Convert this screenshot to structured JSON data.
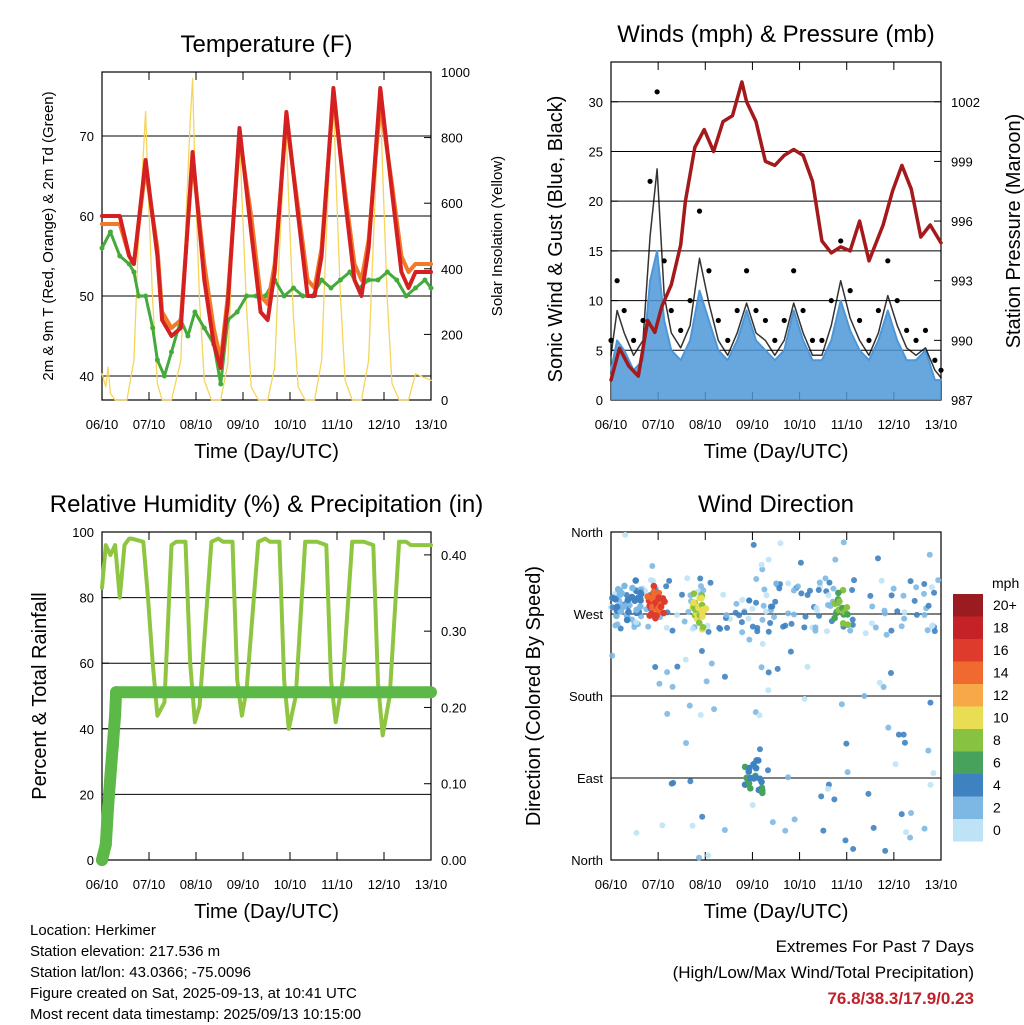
{
  "panels": {
    "temperature": {
      "title": "Temperature (F)",
      "ylabel_left": "2m & 9m T (Red, Orange) & 2m Td (Green)",
      "ylabel_right": "Solar Insolation (Yellow)",
      "xlabel": "Time (Day/UTC)"
    },
    "winds": {
      "title": "Winds (mph) & Pressure (mb)",
      "ylabel_left": "Sonic Wind & Gust (Blue, Black)",
      "ylabel_right": "Station Pressure (Maroon)",
      "xlabel": "Time (Day/UTC)"
    },
    "humidity": {
      "title": "Relative Humidity (%) & Precipitation (in)",
      "ylabel_left": "Percent & Total Rainfall",
      "xlabel": "Time (Day/UTC)"
    },
    "direction": {
      "title": "Wind Direction",
      "ylabel_left": "Direction (Colored By Speed)",
      "xlabel": "Time (Day/UTC)",
      "legend_title": "mph"
    }
  },
  "colors": {
    "temp2m": "#d42020",
    "temp9m": "#f07a28",
    "dewpoint": "#44aa3c",
    "solar": "#f5d55a",
    "wind": "#4d97d8",
    "gust": "#000000",
    "pressure": "#a3191c",
    "rh": "#8ec641",
    "precip": "#5cb847"
  },
  "chart_data": [
    {
      "type": "line",
      "id": "temperature",
      "xticks": [
        "06/10",
        "07/10",
        "08/10",
        "09/10",
        "10/10",
        "11/10",
        "12/10",
        "13/10"
      ],
      "xlim_days": [
        6.42,
        13.43
      ],
      "ylim": [
        37,
        78
      ],
      "yticks": [
        "40",
        "50",
        "60",
        "70"
      ],
      "y2lim": [
        0,
        1000
      ],
      "y2ticks": [
        "0",
        "200",
        "400",
        "600",
        "800",
        "1000"
      ],
      "series": [
        {
          "x_days": [
            6.42,
            6.8,
            7.0,
            7.1,
            7.35,
            7.6,
            7.7,
            7.9,
            8.1,
            8.35,
            8.6,
            8.8,
            8.95,
            9.1,
            9.35,
            9.6,
            9.8,
            9.95,
            10.1,
            10.35,
            10.6,
            10.8,
            10.95,
            11.1,
            11.35,
            11.6,
            11.8,
            11.95,
            12.1,
            12.35,
            12.6,
            12.8,
            12.95,
            13.1,
            13.3,
            13.43
          ],
          "y": [
            60,
            60,
            55,
            54,
            67,
            55,
            47,
            45,
            46,
            68,
            52,
            44,
            41,
            49,
            71,
            58,
            48,
            47,
            53,
            73,
            60,
            50,
            50,
            55,
            76,
            62,
            52,
            50,
            56,
            76,
            63,
            53,
            51,
            53,
            53,
            53
          ]
        },
        {
          "x_days": [
            6.42,
            6.8,
            7.0,
            7.1,
            7.35,
            7.6,
            7.7,
            7.9,
            8.1,
            8.35,
            8.6,
            8.8,
            8.95,
            9.1,
            9.35,
            9.6,
            9.8,
            9.95,
            10.1,
            10.35,
            10.6,
            10.8,
            10.95,
            11.1,
            11.35,
            11.6,
            11.8,
            11.95,
            12.1,
            12.35,
            12.6,
            12.8,
            12.95,
            13.1,
            13.3,
            13.43
          ],
          "y": [
            59,
            59,
            55,
            54,
            66,
            56,
            48,
            46,
            47,
            67,
            54,
            46,
            42,
            50,
            70,
            60,
            50,
            49,
            54,
            72,
            61,
            52,
            51,
            56,
            75,
            63,
            54,
            52,
            57,
            74,
            64,
            55,
            53,
            54,
            54,
            54
          ]
        },
        {
          "x_days": [
            6.42,
            6.6,
            6.8,
            7.0,
            7.1,
            7.2,
            7.35,
            7.5,
            7.6,
            7.75,
            7.9,
            8.1,
            8.25,
            8.4,
            8.6,
            8.8,
            8.95,
            9.1,
            9.3,
            9.5,
            9.7,
            9.9,
            10.1,
            10.3,
            10.5,
            10.7,
            10.9,
            11.1,
            11.3,
            11.5,
            11.7,
            11.9,
            12.1,
            12.3,
            12.5,
            12.7,
            12.9,
            13.1,
            13.3,
            13.43
          ],
          "y": [
            56,
            58,
            55,
            54,
            53,
            50,
            50,
            46,
            42,
            40,
            43,
            47,
            45,
            48,
            46,
            44,
            39,
            47,
            48,
            50,
            50,
            50,
            52,
            50,
            51,
            50,
            50,
            52,
            51,
            52,
            53,
            51,
            52,
            52,
            53,
            52,
            50,
            51,
            52,
            51
          ]
        },
        {
          "x_days": [
            6.42,
            6.5,
            6.55,
            6.6,
            6.7,
            6.8,
            6.95,
            7.1,
            7.2,
            7.3,
            7.35,
            7.4,
            7.5,
            7.6,
            7.7,
            7.9,
            8.1,
            8.2,
            8.3,
            8.35,
            8.4,
            8.5,
            8.6,
            8.75,
            8.95,
            9.1,
            9.2,
            9.3,
            9.35,
            9.4,
            9.5,
            9.6,
            9.75,
            9.95,
            10.1,
            10.2,
            10.3,
            10.35,
            10.4,
            10.5,
            10.6,
            10.75,
            10.95,
            11.1,
            11.2,
            11.3,
            11.35,
            11.4,
            11.5,
            11.6,
            11.75,
            11.95,
            12.1,
            12.2,
            12.3,
            12.35,
            12.4,
            12.5,
            12.6,
            12.75,
            12.95,
            13.1,
            13.43
          ],
          "y": [
            80,
            40,
            100,
            20,
            0,
            0,
            0,
            120,
            500,
            750,
            880,
            650,
            300,
            50,
            0,
            0,
            120,
            520,
            850,
            980,
            700,
            300,
            60,
            0,
            0,
            110,
            480,
            760,
            820,
            620,
            280,
            40,
            0,
            0,
            100,
            450,
            740,
            800,
            600,
            250,
            40,
            0,
            0,
            120,
            500,
            830,
            930,
            700,
            320,
            60,
            0,
            0,
            120,
            480,
            820,
            920,
            690,
            300,
            50,
            0,
            0,
            80,
            60
          ]
        }
      ]
    },
    {
      "type": "line",
      "id": "winds",
      "xticks": [
        "06/10",
        "07/10",
        "08/10",
        "09/10",
        "10/10",
        "11/10",
        "12/10",
        "13/10"
      ],
      "xlim_days": [
        6.42,
        13.43
      ],
      "ylim": [
        0,
        34
      ],
      "yticks": [
        "0",
        "5",
        "10",
        "15",
        "20",
        "25",
        "30"
      ],
      "y2lim": [
        987,
        1004
      ],
      "y2ticks": [
        "987",
        "990",
        "993",
        "996",
        "999",
        "1002"
      ],
      "series": [
        {
          "x_days": [
            6.42,
            6.55,
            6.7,
            6.9,
            7.1,
            7.25,
            7.4,
            7.55,
            7.7,
            7.9,
            8.1,
            8.3,
            8.5,
            8.7,
            8.9,
            9.1,
            9.3,
            9.5,
            9.7,
            9.9,
            10.1,
            10.3,
            10.5,
            10.7,
            10.9,
            11.1,
            11.3,
            11.5,
            11.7,
            11.9,
            12.1,
            12.3,
            12.5,
            12.7,
            12.9,
            13.1,
            13.3,
            13.43
          ],
          "y": [
            3,
            6,
            5,
            3,
            4,
            12,
            15,
            8,
            5,
            4,
            6,
            11,
            8,
            5,
            4,
            6,
            9,
            6,
            5,
            4,
            5,
            9,
            6,
            4,
            4,
            6,
            10,
            7,
            5,
            4,
            6,
            9,
            6,
            4,
            4,
            5,
            2,
            2
          ]
        },
        {
          "x_days": [
            6.42,
            6.55,
            6.7,
            6.9,
            7.1,
            7.25,
            7.4,
            7.55,
            7.7,
            7.9,
            8.1,
            8.3,
            8.5,
            8.7,
            8.9,
            9.1,
            9.3,
            9.5,
            9.7,
            9.9,
            10.1,
            10.3,
            10.5,
            10.7,
            10.9,
            11.1,
            11.3,
            11.5,
            11.7,
            11.9,
            12.1,
            12.3,
            12.5,
            12.7,
            12.9,
            13.1,
            13.3,
            13.43
          ],
          "y": [
            6,
            12,
            9,
            6,
            8,
            22,
            31,
            14,
            9,
            7,
            10,
            19,
            13,
            8,
            6,
            9,
            13,
            9,
            8,
            6,
            8,
            13,
            9,
            6,
            6,
            10,
            16,
            11,
            8,
            6,
            9,
            14,
            10,
            7,
            6,
            7,
            4,
            3
          ]
        },
        {
          "x_days": [
            6.42,
            6.6,
            6.8,
            7.0,
            7.2,
            7.35,
            7.5,
            7.7,
            7.9,
            8.0,
            8.2,
            8.4,
            8.6,
            8.8,
            9.0,
            9.2,
            9.3,
            9.5,
            9.7,
            9.9,
            10.1,
            10.3,
            10.5,
            10.7,
            10.9,
            11.1,
            11.3,
            11.5,
            11.7,
            11.9,
            12.1,
            12.2,
            12.4,
            12.6,
            12.8,
            13.0,
            13.2,
            13.43
          ],
          "y": [
            988.0,
            989.6,
            988.7,
            988.2,
            991.0,
            990.4,
            991.7,
            992.8,
            994.8,
            997.0,
            999.7,
            1000.6,
            999.5,
            1001.0,
            1001.3,
            1003.0,
            1002.0,
            1001.0,
            999.0,
            998.8,
            999.3,
            999.6,
            999.3,
            998.0,
            995.0,
            994.4,
            994.7,
            994.5,
            996.0,
            994.0,
            995.2,
            995.8,
            997.5,
            998.8,
            997.6,
            995.2,
            995.8,
            994.9
          ]
        }
      ]
    },
    {
      "type": "line",
      "id": "humidity",
      "xticks": [
        "06/10",
        "07/10",
        "08/10",
        "09/10",
        "10/10",
        "11/10",
        "12/10",
        "13/10"
      ],
      "xlim_days": [
        6.42,
        13.43
      ],
      "ylim": [
        0,
        100
      ],
      "yticks": [
        "0",
        "20",
        "40",
        "60",
        "80",
        "100"
      ],
      "y2lim": [
        0,
        0.43
      ],
      "y2ticks": [
        "0.00",
        "0.10",
        "0.20",
        "0.30",
        "0.40"
      ],
      "series": [
        {
          "x_days": [
            6.42,
            6.5,
            6.6,
            6.7,
            6.8,
            6.9,
            7.0,
            7.05,
            7.3,
            7.4,
            7.5,
            7.6,
            7.75,
            7.9,
            8.0,
            8.2,
            8.3,
            8.4,
            8.5,
            8.75,
            8.9,
            9.0,
            9.2,
            9.3,
            9.4,
            9.5,
            9.75,
            9.9,
            10.0,
            10.2,
            10.3,
            10.4,
            10.55,
            10.75,
            10.9,
            11.0,
            11.2,
            11.3,
            11.4,
            11.55,
            11.75,
            11.9,
            12.0,
            12.2,
            12.3,
            12.4,
            12.55,
            12.75,
            12.9,
            13.0,
            13.43
          ],
          "y": [
            83,
            96,
            93,
            96,
            80,
            96,
            98,
            98,
            97,
            80,
            60,
            44,
            48,
            96,
            97,
            97,
            60,
            42,
            47,
            97,
            98,
            97,
            97,
            55,
            44,
            52,
            97,
            98,
            97,
            97,
            55,
            40,
            50,
            97,
            97,
            97,
            96,
            55,
            42,
            55,
            97,
            97,
            97,
            96,
            54,
            38,
            50,
            97,
            97,
            96,
            96
          ]
        },
        {
          "x_days": [
            6.42,
            6.5,
            6.55,
            6.6,
            6.65,
            6.7,
            6.72,
            13.43
          ],
          "y": [
            0,
            0.02,
            0.07,
            0.11,
            0.15,
            0.19,
            0.22,
            0.22
          ]
        }
      ]
    },
    {
      "type": "scatter",
      "id": "direction",
      "xticks": [
        "06/10",
        "07/10",
        "08/10",
        "09/10",
        "10/10",
        "11/10",
        "12/10",
        "13/10"
      ],
      "xlim_days": [
        6.42,
        13.43
      ],
      "ylim": [
        0,
        360
      ],
      "yticks": [
        "North",
        "East",
        "South",
        "West",
        "North"
      ],
      "legend": {
        "labels": [
          "20+",
          "18",
          "16",
          "14",
          "12",
          "10",
          "8",
          "6",
          "4",
          "2",
          "0"
        ],
        "colors": [
          "#9b1c20",
          "#c52227",
          "#df3b2c",
          "#f06a30",
          "#f7a94a",
          "#e9dd54",
          "#87c241",
          "#47a35b",
          "#3e82c1",
          "#7db8e4",
          "#bfe3f6"
        ]
      },
      "series": [
        {
          "name": "dir-cluster-1",
          "x_days": [
            6.5,
            6.6,
            6.7,
            6.8,
            6.9,
            7.0,
            7.1
          ],
          "y": [
            280,
            285,
            290,
            275,
            295,
            280,
            285
          ],
          "speed_bin": 4
        },
        {
          "name": "dir-cluster-2",
          "x_days": [
            7.25,
            7.3,
            7.35,
            7.4,
            7.45,
            7.5
          ],
          "y": [
            285,
            280,
            290,
            275,
            285,
            280
          ],
          "speed_bin": 16
        },
        {
          "name": "dir-cluster-3",
          "x_days": [
            8.2,
            8.25,
            8.3,
            8.35,
            8.4
          ],
          "y": [
            280,
            270,
            285,
            265,
            275
          ],
          "speed_bin": 10
        },
        {
          "name": "dir-cluster-4",
          "x_days": [
            9.3,
            9.4,
            9.5,
            9.6
          ],
          "y": [
            95,
            90,
            100,
            85
          ],
          "speed_bin": 6
        },
        {
          "name": "dir-cluster-5",
          "x_days": [
            11.2,
            11.3,
            11.4
          ],
          "y": [
            275,
            285,
            270
          ],
          "speed_bin": 8
        }
      ]
    }
  ],
  "footer": {
    "location": "Location: Herkimer",
    "elevation": "Station elevation: 217.536 m",
    "latlon": "Station lat/lon: 43.0366; -75.0096",
    "created": "Figure created on Sat, 2025-09-13, at 10:41 UTC",
    "recent": "Most recent data timestamp: 2025/09/13 10:15:00",
    "extremes_title": "Extremes For Past 7 Days",
    "extremes_sub": "(High/Low/Max Wind/Total Precipitation)",
    "extremes_values": "76.8/38.3/17.9/0.23"
  }
}
